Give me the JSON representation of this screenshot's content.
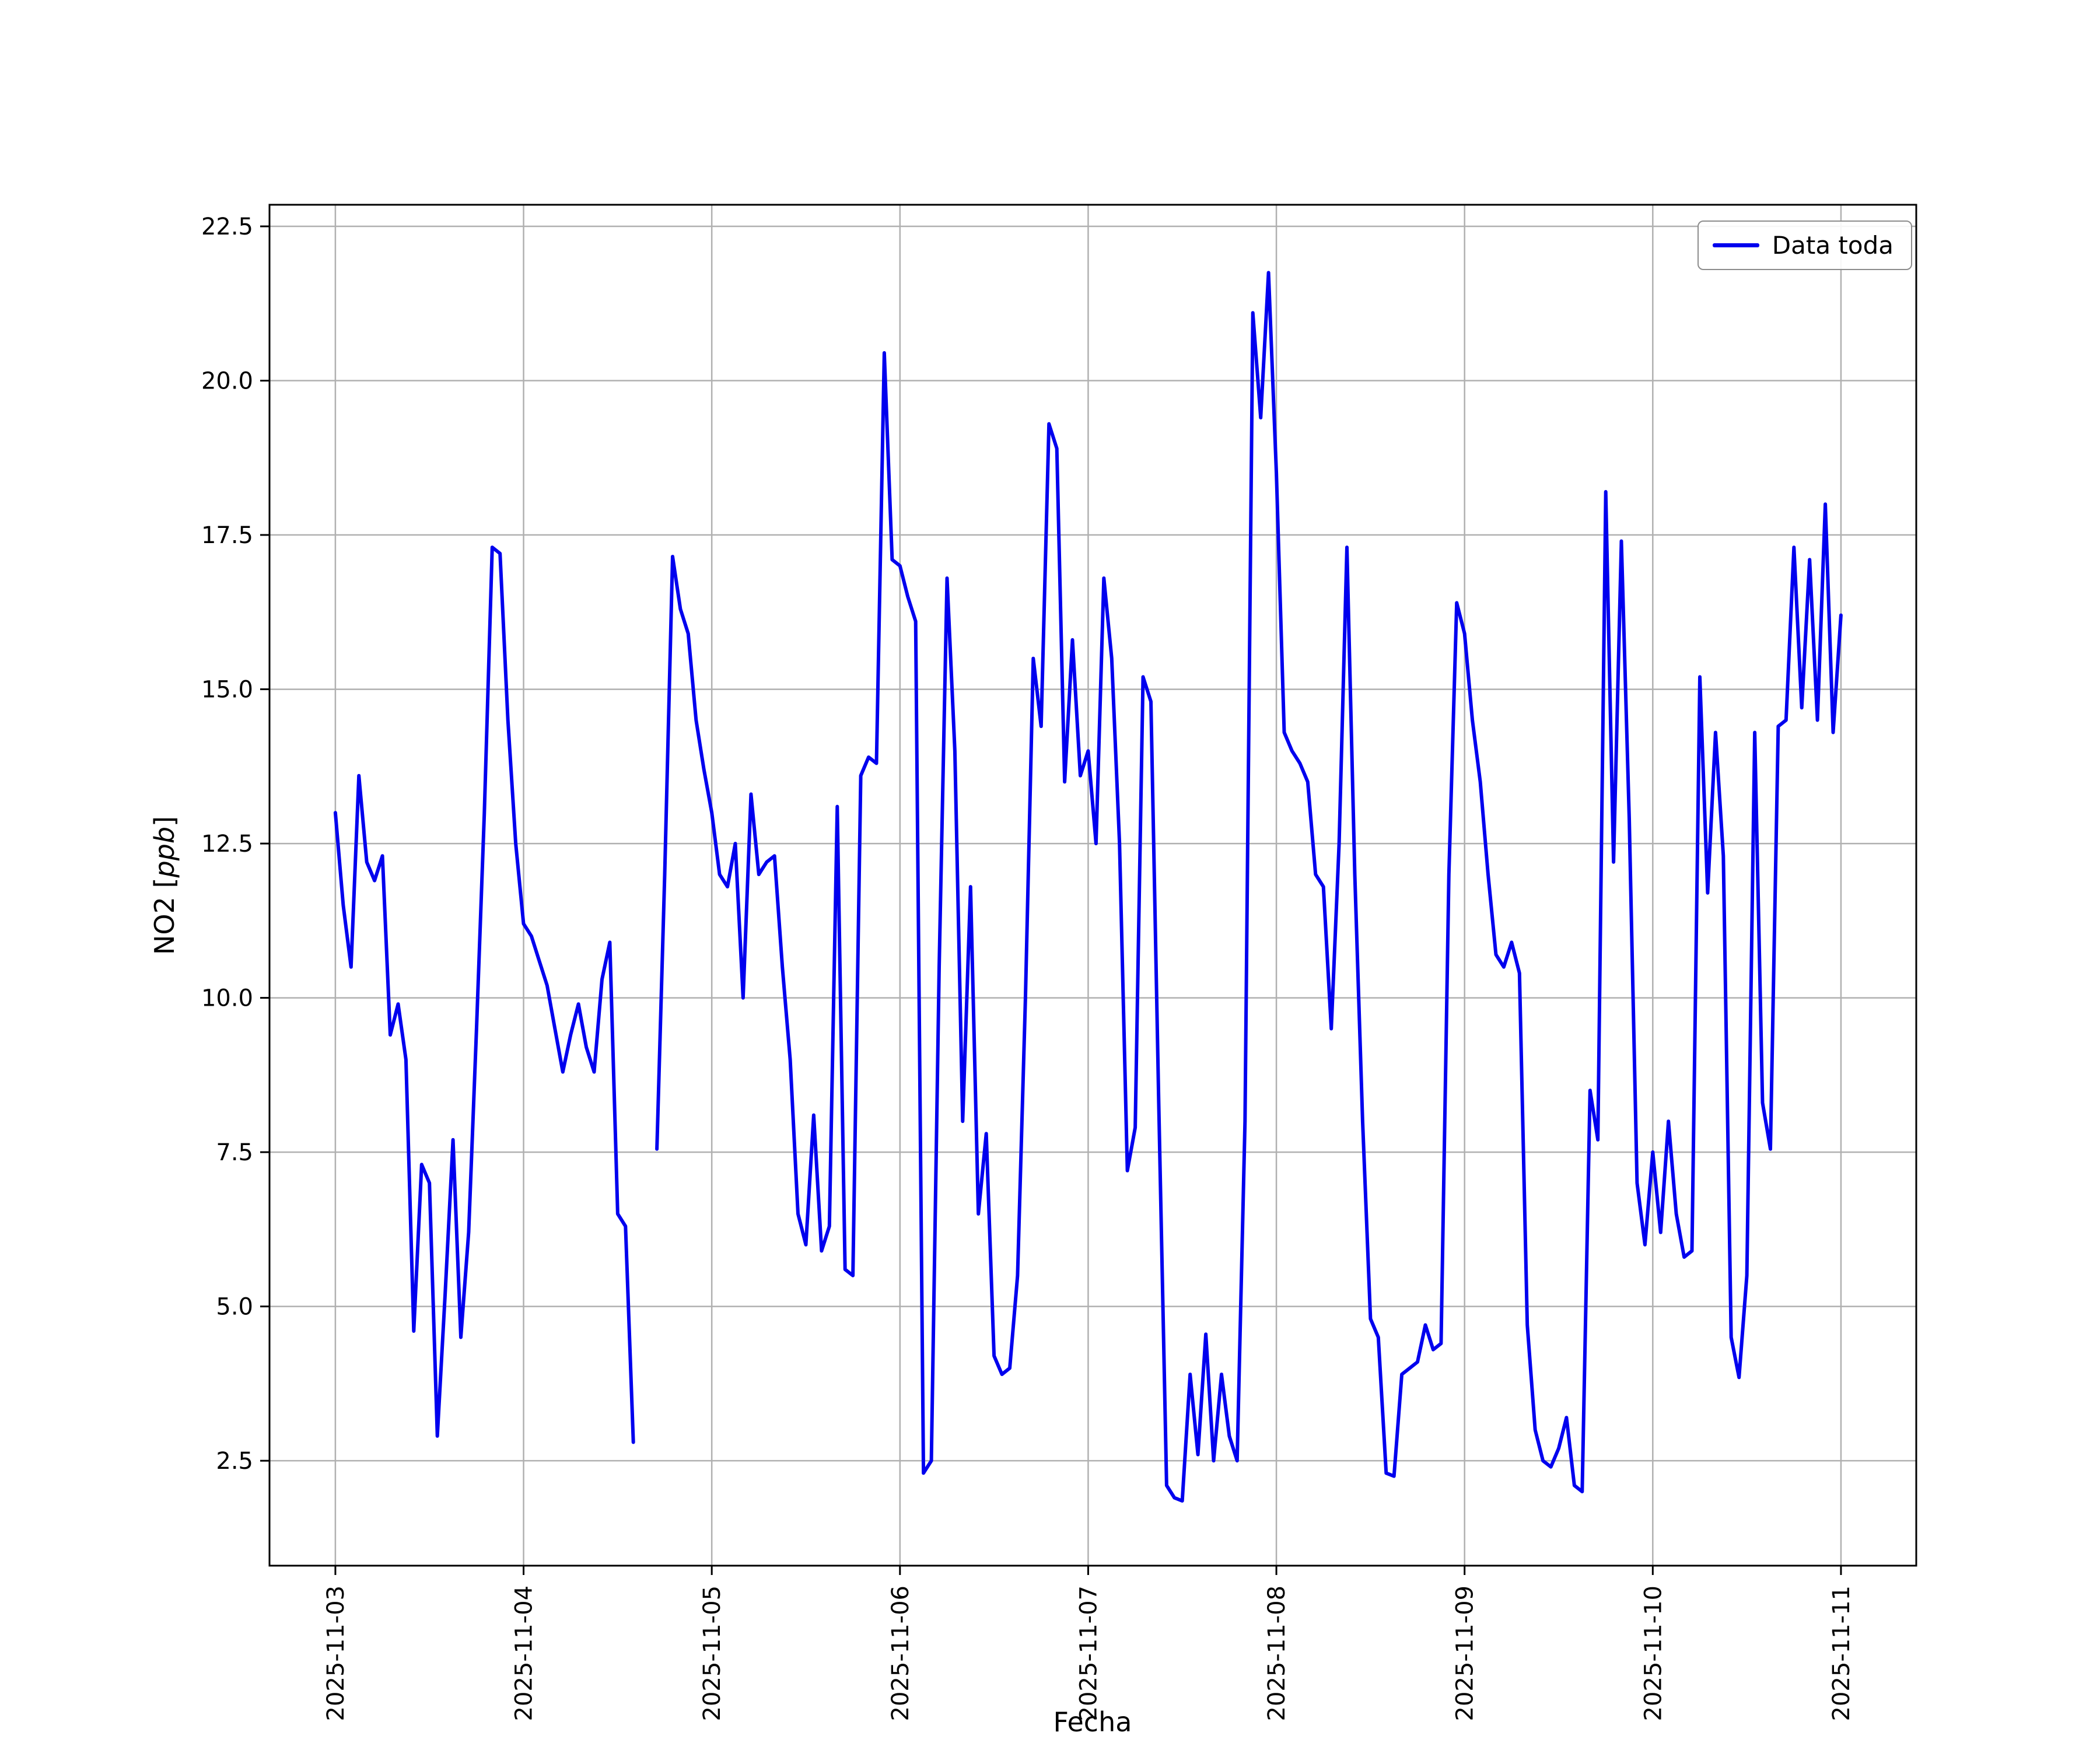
{
  "chart_data": {
    "type": "line",
    "title": "",
    "xlabel": "Fecha",
    "ylabel": "NO2 [ppb]",
    "ylabel_parts": [
      "NO2 [",
      "ppb",
      "]"
    ],
    "x_tick_labels": [
      "2025-11-03",
      "2025-11-04",
      "2025-11-05",
      "2025-11-06",
      "2025-11-07",
      "2025-11-08",
      "2025-11-09",
      "2025-11-10",
      "2025-11-11"
    ],
    "yticks": [
      2.5,
      5.0,
      7.5,
      10.0,
      12.5,
      15.0,
      17.5,
      20.0,
      22.5
    ],
    "ylim": [
      0.8,
      22.85
    ],
    "xlim_days": [
      -0.35,
      8.4
    ],
    "points_per_day": 24,
    "grid": true,
    "legend_position": "upper right",
    "series": [
      {
        "name": "Data toda",
        "color": "#0000ee",
        "values": [
          13.0,
          11.5,
          10.5,
          13.6,
          12.2,
          11.9,
          12.3,
          9.4,
          9.9,
          9.0,
          4.6,
          7.3,
          7.0,
          2.9,
          5.2,
          7.7,
          4.5,
          6.2,
          9.5,
          13.0,
          17.3,
          17.2,
          14.5,
          12.5,
          11.2,
          11.0,
          10.6,
          10.2,
          9.5,
          8.8,
          9.4,
          9.9,
          9.2,
          8.8,
          10.3,
          10.9,
          6.5,
          6.3,
          2.8,
          null,
          null,
          7.55,
          12.0,
          17.15,
          16.3,
          15.9,
          14.5,
          13.7,
          13.0,
          12.0,
          11.8,
          12.5,
          10.0,
          13.3,
          12.0,
          12.2,
          12.3,
          10.5,
          9.0,
          6.5,
          6.0,
          8.1,
          5.9,
          6.3,
          13.1,
          5.6,
          5.5,
          13.6,
          13.9,
          13.8,
          20.45,
          17.1,
          17.0,
          16.5,
          16.1,
          2.3,
          2.5,
          10.5,
          16.8,
          14.0,
          8.0,
          11.8,
          6.5,
          7.8,
          4.2,
          3.9,
          4.0,
          5.5,
          10.0,
          15.5,
          14.4,
          19.3,
          18.9,
          13.5,
          15.8,
          13.6,
          14.0,
          12.5,
          16.8,
          15.5,
          12.5,
          7.2,
          7.9,
          15.2,
          14.8,
          8.3,
          2.1,
          1.9,
          1.85,
          3.9,
          2.6,
          4.55,
          2.5,
          3.9,
          2.9,
          2.5,
          8.0,
          21.1,
          19.4,
          21.75,
          18.5,
          14.3,
          14.0,
          13.8,
          13.5,
          12.0,
          11.8,
          9.5,
          12.5,
          17.3,
          12.0,
          8.0,
          4.8,
          4.5,
          2.3,
          2.25,
          3.9,
          4.0,
          4.1,
          4.7,
          4.3,
          4.4,
          12.0,
          16.4,
          15.9,
          14.5,
          13.5,
          12.0,
          10.7,
          10.5,
          10.9,
          10.4,
          4.7,
          3.0,
          2.5,
          2.4,
          2.7,
          3.2,
          2.1,
          2.0,
          8.5,
          7.7,
          18.2,
          12.2,
          17.4,
          12.9,
          7.0,
          6.0,
          7.5,
          6.2,
          8.0,
          6.5,
          5.8,
          5.9,
          15.2,
          11.7,
          14.3,
          12.3,
          4.5,
          3.85,
          5.5,
          14.3,
          8.3,
          7.55,
          14.4,
          14.5,
          17.3,
          14.7,
          17.1,
          14.5,
          18.0,
          14.3,
          16.2
        ]
      }
    ]
  },
  "colors": {
    "line": "#0000ee",
    "grid": "#b0b0b0",
    "frame": "#000000",
    "tick_text": "#000000",
    "background": "#ffffff",
    "legend_border": "#8c8c8c"
  }
}
